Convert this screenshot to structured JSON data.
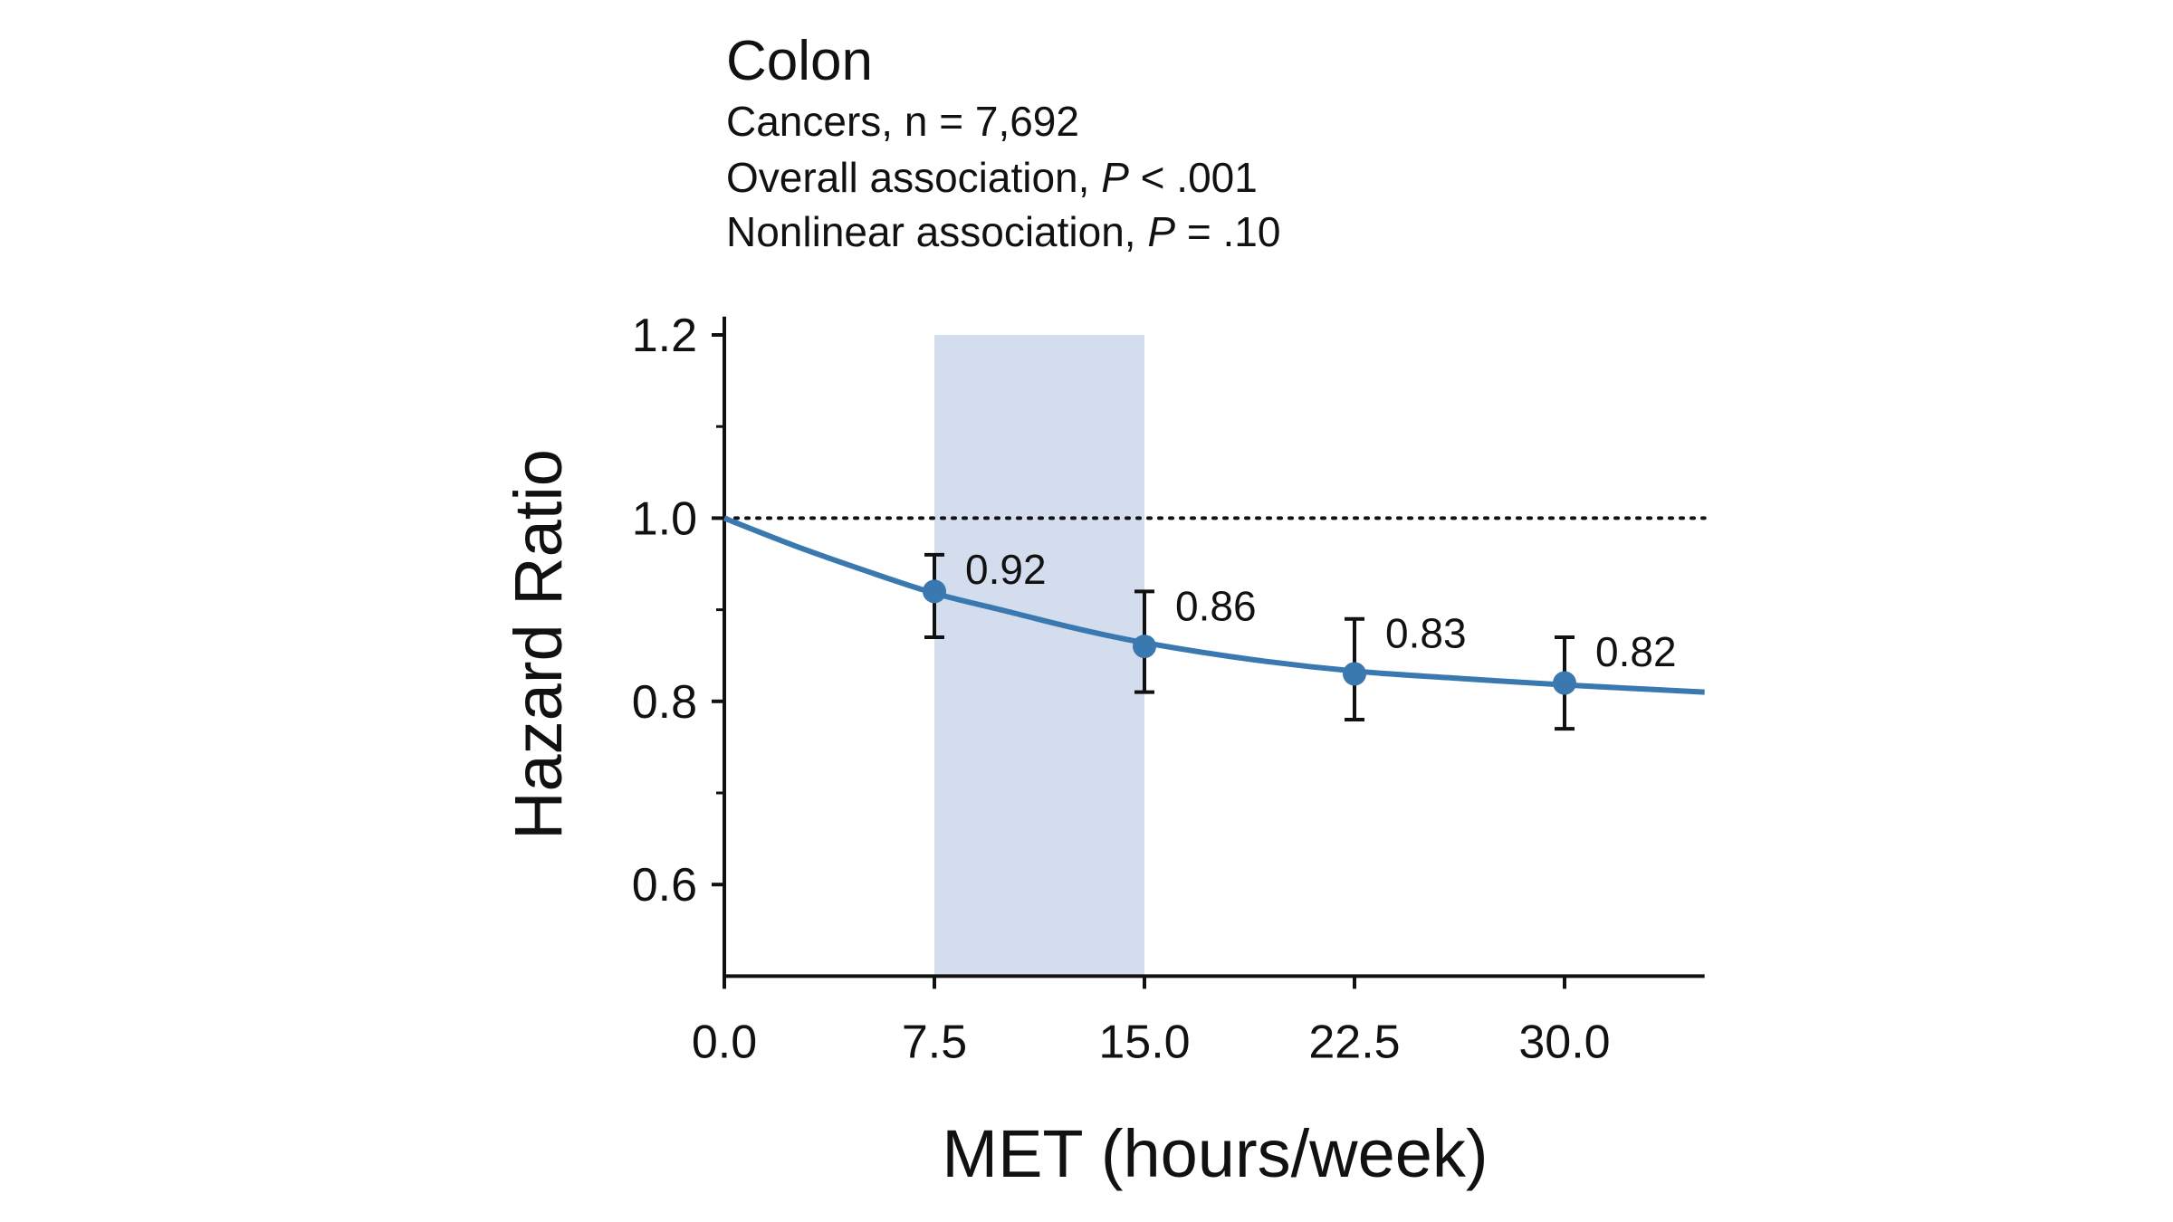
{
  "chart_data": {
    "type": "line",
    "title": "Colon",
    "subtitle_lines": [
      {
        "text": "Cancers, n = 7,692",
        "italic_p": false,
        "pre": "Cancers, n = 7,692",
        "post": ""
      },
      {
        "text": "Overall association, P < .001",
        "pre": "Overall association, ",
        "p": "P",
        "post": " < .001"
      },
      {
        "text": "Nonlinear association, P = .10",
        "pre": "Nonlinear association, ",
        "p": "P",
        "post": " = .10"
      }
    ],
    "xlabel": "MET (hours/week)",
    "ylabel": "Hazard Ratio",
    "xlim": [
      0,
      35
    ],
    "ylim": [
      0.5,
      1.2
    ],
    "x_ticks": [
      0,
      7.5,
      15,
      22.5,
      30
    ],
    "x_tick_labels": [
      "0.0",
      "7.5",
      "15.0",
      "22.5",
      "30.0"
    ],
    "y_ticks": [
      0.6,
      0.8,
      1.0,
      1.2
    ],
    "y_tick_labels": [
      "0.6",
      "0.8",
      "1.0",
      "1.2"
    ],
    "y_minor_ticks": [
      0.7,
      0.9,
      1.1
    ],
    "reference_line": {
      "y": 1.0,
      "style": "dotted"
    },
    "shaded_region": {
      "x": [
        7.5,
        15
      ],
      "y": [
        0.5,
        1.2
      ],
      "color": "#d4dded"
    },
    "curve": {
      "x": [
        0,
        2.5,
        5,
        7.5,
        10,
        12.5,
        15,
        18.75,
        22.5,
        26.25,
        30,
        35
      ],
      "y": [
        1.0,
        0.97,
        0.943,
        0.918,
        0.899,
        0.88,
        0.864,
        0.846,
        0.833,
        0.825,
        0.818,
        0.81
      ],
      "color": "#3a78b0"
    },
    "points": [
      {
        "x": 7.5,
        "y": 0.92,
        "lower": 0.87,
        "upper": 0.96,
        "label": "0.92"
      },
      {
        "x": 15,
        "y": 0.86,
        "lower": 0.81,
        "upper": 0.92,
        "label": "0.86"
      },
      {
        "x": 22.5,
        "y": 0.83,
        "lower": 0.78,
        "upper": 0.89,
        "label": "0.83"
      },
      {
        "x": 30,
        "y": 0.82,
        "lower": 0.77,
        "upper": 0.87,
        "label": "0.82"
      }
    ],
    "grid": false,
    "legend": "none"
  }
}
